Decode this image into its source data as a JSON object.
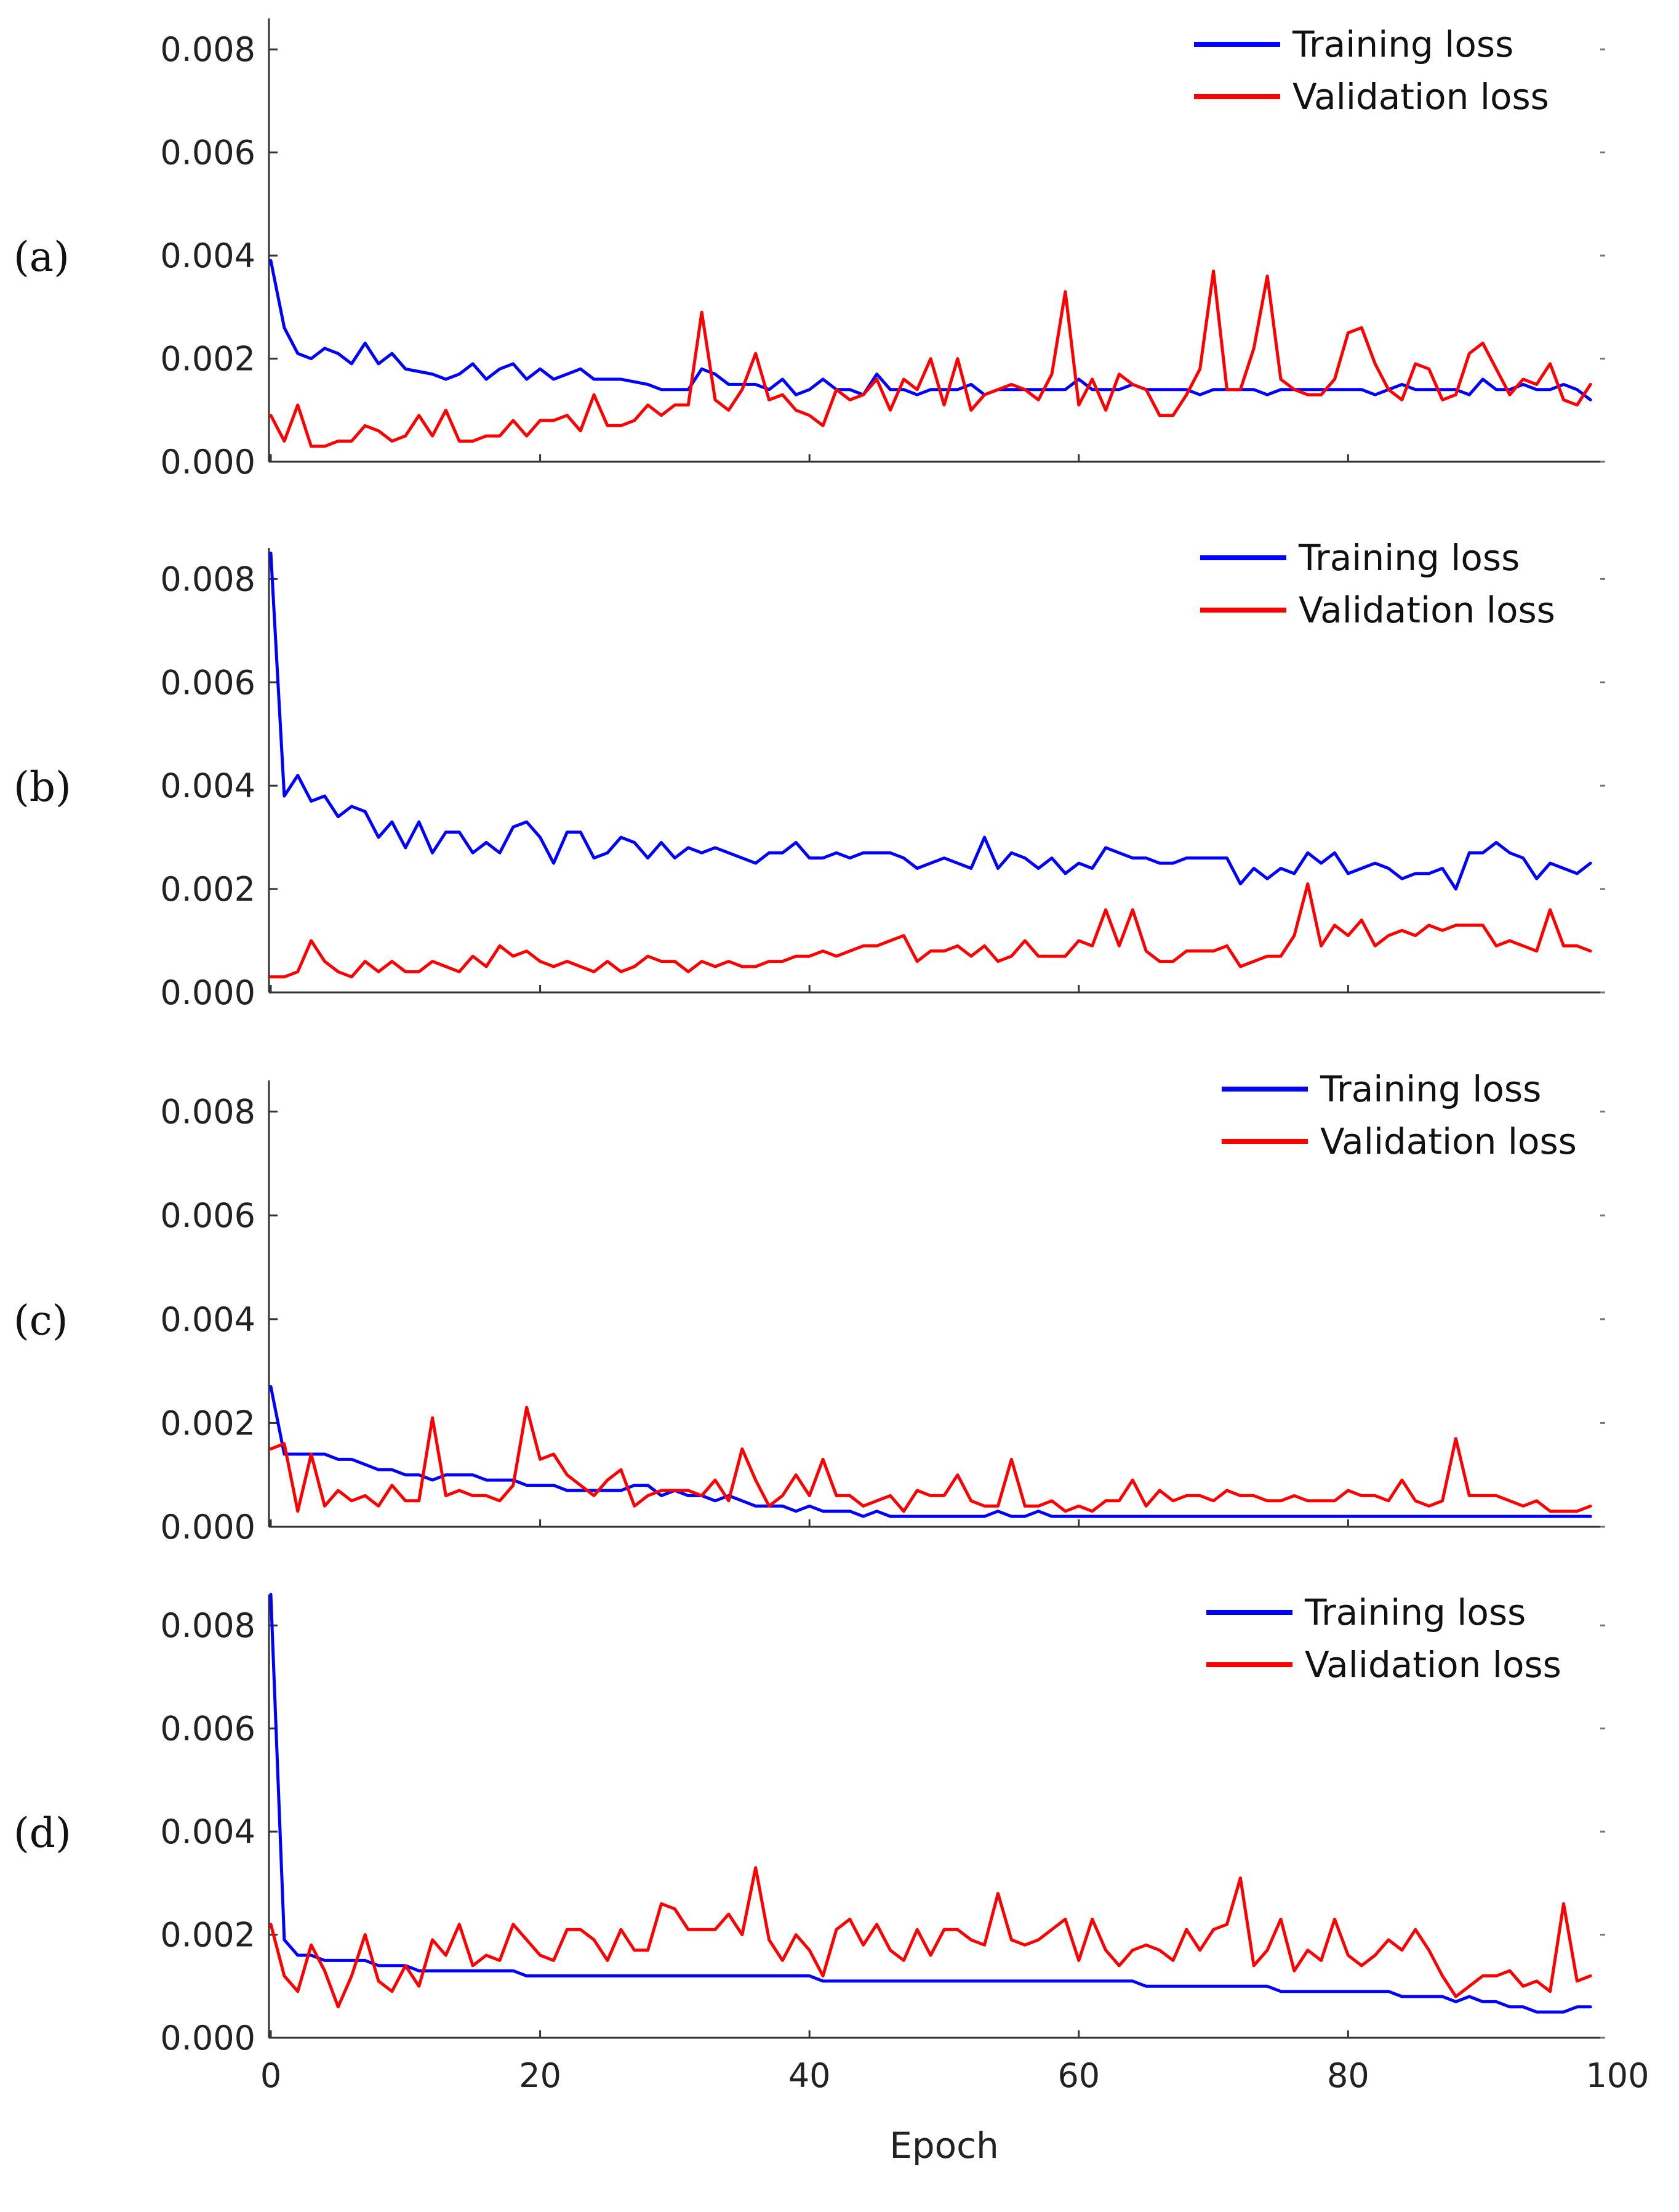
{
  "chart_data": [
    {
      "type": "line",
      "panel": "(a)",
      "xlabel": "",
      "ylabel": "",
      "xlim": [
        0,
        100
      ],
      "ylim": [
        0,
        0.0086
      ],
      "yticks": [
        "0.000",
        "0.002",
        "0.004",
        "0.006",
        "0.008"
      ],
      "legend": {
        "position": "top-right",
        "entries": [
          "Training loss",
          "Validation loss"
        ]
      },
      "series": [
        {
          "name": "Training loss",
          "color": "#0000ff",
          "values": [
            0.0039,
            0.0026,
            0.0021,
            0.002,
            0.0022,
            0.0021,
            0.0019,
            0.0023,
            0.0019,
            0.0021,
            0.0018,
            0.00175,
            0.0017,
            0.0016,
            0.0017,
            0.0019,
            0.0016,
            0.0018,
            0.0019,
            0.0016,
            0.0018,
            0.0016,
            0.0017,
            0.0018,
            0.0016,
            0.0016,
            0.0016,
            0.00155,
            0.0015,
            0.0014,
            0.0014,
            0.0014,
            0.0018,
            0.0017,
            0.0015,
            0.0015,
            0.0015,
            0.0014,
            0.0016,
            0.0013,
            0.0014,
            0.0016,
            0.0014,
            0.0014,
            0.0013,
            0.0017,
            0.0014,
            0.0014,
            0.0013,
            0.0014,
            0.0014,
            0.0014,
            0.0015,
            0.0013,
            0.0014,
            0.0014,
            0.0014,
            0.0014,
            0.0014,
            0.0014,
            0.0016,
            0.0014,
            0.0014,
            0.0014,
            0.0015,
            0.0014,
            0.0014,
            0.0014,
            0.0014,
            0.0013,
            0.0014,
            0.0014,
            0.0014,
            0.0014,
            0.0013,
            0.0014,
            0.0014,
            0.0014,
            0.0014,
            0.0014,
            0.0014,
            0.0014,
            0.0013,
            0.0014,
            0.0015,
            0.0014,
            0.0014,
            0.0014,
            0.0014,
            0.0013,
            0.0016,
            0.0014,
            0.0014,
            0.0015,
            0.0014,
            0.0014,
            0.0015,
            0.0014,
            0.0012
          ]
        },
        {
          "name": "Validation loss",
          "color": "#ff0000",
          "values": [
            0.0009,
            0.0004,
            0.0011,
            0.0003,
            0.0003,
            0.0004,
            0.0004,
            0.0007,
            0.0006,
            0.0004,
            0.0005,
            0.0009,
            0.0005,
            0.001,
            0.0004,
            0.0004,
            0.0005,
            0.0005,
            0.0008,
            0.0005,
            0.0008,
            0.0008,
            0.0009,
            0.0006,
            0.0013,
            0.0007,
            0.0007,
            0.0008,
            0.0011,
            0.0009,
            0.0011,
            0.0011,
            0.0029,
            0.0012,
            0.001,
            0.0014,
            0.0021,
            0.0012,
            0.0013,
            0.001,
            0.0009,
            0.0007,
            0.0014,
            0.0012,
            0.0013,
            0.0016,
            0.001,
            0.0016,
            0.0014,
            0.002,
            0.0011,
            0.002,
            0.001,
            0.0013,
            0.0014,
            0.0015,
            0.0014,
            0.0012,
            0.0017,
            0.0033,
            0.0011,
            0.0016,
            0.001,
            0.0017,
            0.0015,
            0.0014,
            0.0009,
            0.0009,
            0.0013,
            0.0018,
            0.0037,
            0.0014,
            0.0014,
            0.0022,
            0.0036,
            0.0016,
            0.0014,
            0.0013,
            0.0013,
            0.0016,
            0.0025,
            0.0026,
            0.0019,
            0.0014,
            0.0012,
            0.0019,
            0.0018,
            0.0012,
            0.0013,
            0.0021,
            0.0023,
            0.0018,
            0.0013,
            0.0016,
            0.0015,
            0.0019,
            0.0012,
            0.0011,
            0.0015
          ]
        }
      ]
    },
    {
      "type": "line",
      "panel": "(b)",
      "xlabel": "",
      "ylabel": "",
      "xlim": [
        0,
        100
      ],
      "ylim": [
        0,
        0.0086
      ],
      "yticks": [
        "0.000",
        "0.002",
        "0.004",
        "0.006",
        "0.008"
      ],
      "legend": {
        "position": "top-right",
        "entries": [
          "Training loss",
          "Validation loss"
        ]
      },
      "series": [
        {
          "name": "Training loss",
          "color": "#0000ff",
          "values": [
            0.0085,
            0.0038,
            0.0042,
            0.0037,
            0.0038,
            0.0034,
            0.0036,
            0.0035,
            0.003,
            0.0033,
            0.0028,
            0.0033,
            0.0027,
            0.0031,
            0.0031,
            0.0027,
            0.0029,
            0.0027,
            0.0032,
            0.0033,
            0.003,
            0.0025,
            0.0031,
            0.0031,
            0.0026,
            0.0027,
            0.003,
            0.0029,
            0.0026,
            0.0029,
            0.0026,
            0.0028,
            0.0027,
            0.0028,
            0.0027,
            0.0026,
            0.0025,
            0.0027,
            0.0027,
            0.0029,
            0.0026,
            0.0026,
            0.0027,
            0.0026,
            0.0027,
            0.0027,
            0.0027,
            0.0026,
            0.0024,
            0.0025,
            0.0026,
            0.0025,
            0.0024,
            0.003,
            0.0024,
            0.0027,
            0.0026,
            0.0024,
            0.0026,
            0.0023,
            0.0025,
            0.0024,
            0.0028,
            0.0027,
            0.0026,
            0.0026,
            0.0025,
            0.0025,
            0.0026,
            0.0026,
            0.0026,
            0.0026,
            0.0021,
            0.0024,
            0.0022,
            0.0024,
            0.0023,
            0.0027,
            0.0025,
            0.0027,
            0.0023,
            0.0024,
            0.0025,
            0.0024,
            0.0022,
            0.0023,
            0.0023,
            0.0024,
            0.002,
            0.0027,
            0.0027,
            0.0029,
            0.0027,
            0.0026,
            0.0022,
            0.0025,
            0.0024,
            0.0023,
            0.0025
          ]
        },
        {
          "name": "Validation loss",
          "color": "#ff0000",
          "values": [
            0.0003,
            0.0003,
            0.0004,
            0.001,
            0.0006,
            0.0004,
            0.0003,
            0.0006,
            0.0004,
            0.0006,
            0.0004,
            0.0004,
            0.0006,
            0.0005,
            0.0004,
            0.0007,
            0.0005,
            0.0009,
            0.0007,
            0.0008,
            0.0006,
            0.0005,
            0.0006,
            0.0005,
            0.0004,
            0.0006,
            0.0004,
            0.0005,
            0.0007,
            0.0006,
            0.0006,
            0.0004,
            0.0006,
            0.0005,
            0.0006,
            0.0005,
            0.0005,
            0.0006,
            0.0006,
            0.0007,
            0.0007,
            0.0008,
            0.0007,
            0.0008,
            0.0009,
            0.0009,
            0.001,
            0.0011,
            0.0006,
            0.0008,
            0.0008,
            0.0009,
            0.0007,
            0.0009,
            0.0006,
            0.0007,
            0.001,
            0.0007,
            0.0007,
            0.0007,
            0.001,
            0.0009,
            0.0016,
            0.0009,
            0.0016,
            0.0008,
            0.0006,
            0.0006,
            0.0008,
            0.0008,
            0.0008,
            0.0009,
            0.0005,
            0.0006,
            0.0007,
            0.0007,
            0.0011,
            0.0021,
            0.0009,
            0.0013,
            0.0011,
            0.0014,
            0.0009,
            0.0011,
            0.0012,
            0.0011,
            0.0013,
            0.0012,
            0.0013,
            0.0013,
            0.0013,
            0.0009,
            0.001,
            0.0009,
            0.0008,
            0.0016,
            0.0009,
            0.0009,
            0.0008
          ]
        }
      ]
    },
    {
      "type": "line",
      "panel": "(c)",
      "xlabel": "",
      "ylabel": "",
      "xlim": [
        0,
        100
      ],
      "ylim": [
        0,
        0.0086
      ],
      "yticks": [
        "0.000",
        "0.002",
        "0.004",
        "0.006",
        "0.008"
      ],
      "legend": {
        "position": "top-right",
        "entries": [
          "Training loss",
          "Validation loss"
        ]
      },
      "series": [
        {
          "name": "Training loss",
          "color": "#0000ff",
          "values": [
            0.0027,
            0.0014,
            0.0014,
            0.0014,
            0.0014,
            0.0013,
            0.0013,
            0.0012,
            0.0011,
            0.0011,
            0.001,
            0.001,
            0.0009,
            0.001,
            0.001,
            0.001,
            0.0009,
            0.0009,
            0.0009,
            0.0008,
            0.0008,
            0.0008,
            0.0007,
            0.0007,
            0.0007,
            0.0007,
            0.0007,
            0.0008,
            0.0008,
            0.0006,
            0.0007,
            0.0006,
            0.0006,
            0.0005,
            0.0006,
            0.0005,
            0.0004,
            0.0004,
            0.0004,
            0.0003,
            0.0004,
            0.0003,
            0.0003,
            0.0003,
            0.0002,
            0.0003,
            0.0002,
            0.0002,
            0.0002,
            0.0002,
            0.0002,
            0.0002,
            0.0002,
            0.0002,
            0.0003,
            0.0002,
            0.0002,
            0.0003,
            0.0002,
            0.0002,
            0.0002,
            0.0002,
            0.0002,
            0.0002,
            0.0002,
            0.0002,
            0.0002,
            0.0002,
            0.0002,
            0.0002,
            0.0002,
            0.0002,
            0.0002,
            0.0002,
            0.0002,
            0.0002,
            0.0002,
            0.0002,
            0.0002,
            0.0002,
            0.0002,
            0.0002,
            0.0002,
            0.0002,
            0.0002,
            0.0002,
            0.0002,
            0.0002,
            0.0002,
            0.0002,
            0.0002,
            0.0002,
            0.0002,
            0.0002,
            0.0002,
            0.0002,
            0.0002,
            0.0002,
            0.0002
          ]
        },
        {
          "name": "Validation loss",
          "color": "#ff0000",
          "values": [
            0.0015,
            0.0016,
            0.0003,
            0.0014,
            0.0004,
            0.0007,
            0.0005,
            0.0006,
            0.0004,
            0.0008,
            0.0005,
            0.0005,
            0.0021,
            0.0006,
            0.0007,
            0.0006,
            0.0006,
            0.0005,
            0.0008,
            0.0023,
            0.0013,
            0.0014,
            0.001,
            0.0008,
            0.0006,
            0.0009,
            0.0011,
            0.0004,
            0.0006,
            0.0007,
            0.0007,
            0.0007,
            0.0006,
            0.0009,
            0.0005,
            0.0015,
            0.0009,
            0.0004,
            0.0006,
            0.001,
            0.0006,
            0.0013,
            0.0006,
            0.0006,
            0.0004,
            0.0005,
            0.0006,
            0.0003,
            0.0007,
            0.0006,
            0.0006,
            0.001,
            0.0005,
            0.0004,
            0.0004,
            0.0013,
            0.0004,
            0.0004,
            0.0005,
            0.0003,
            0.0004,
            0.0003,
            0.0005,
            0.0005,
            0.0009,
            0.0004,
            0.0007,
            0.0005,
            0.0006,
            0.0006,
            0.0005,
            0.0007,
            0.0006,
            0.0006,
            0.0005,
            0.0005,
            0.0006,
            0.0005,
            0.0005,
            0.0005,
            0.0007,
            0.0006,
            0.0006,
            0.0005,
            0.0009,
            0.0005,
            0.0004,
            0.0005,
            0.0017,
            0.0006,
            0.0006,
            0.0006,
            0.0005,
            0.0004,
            0.0005,
            0.0003,
            0.0003,
            0.0003,
            0.0004
          ]
        }
      ]
    },
    {
      "type": "line",
      "panel": "(d)",
      "xlabel": "Epoch",
      "ylabel": "",
      "xlim": [
        0,
        100
      ],
      "ylim": [
        0,
        0.0086
      ],
      "xticks": [
        "0",
        "20",
        "40",
        "60",
        "80",
        "100"
      ],
      "yticks": [
        "0.000",
        "0.002",
        "0.004",
        "0.006",
        "0.008"
      ],
      "legend": {
        "position": "top-right",
        "entries": [
          "Training loss",
          "Validation loss"
        ]
      },
      "series": [
        {
          "name": "Training loss",
          "color": "#0000ff",
          "values": [
            0.0086,
            0.0019,
            0.0016,
            0.0016,
            0.0015,
            0.0015,
            0.0015,
            0.0015,
            0.0014,
            0.0014,
            0.0014,
            0.0013,
            0.0013,
            0.0013,
            0.0013,
            0.0013,
            0.0013,
            0.0013,
            0.0013,
            0.0012,
            0.0012,
            0.0012,
            0.0012,
            0.0012,
            0.0012,
            0.0012,
            0.0012,
            0.0012,
            0.0012,
            0.0012,
            0.0012,
            0.0012,
            0.0012,
            0.0012,
            0.0012,
            0.0012,
            0.0012,
            0.0012,
            0.0012,
            0.0012,
            0.0012,
            0.0011,
            0.0011,
            0.0011,
            0.0011,
            0.0011,
            0.0011,
            0.0011,
            0.0011,
            0.0011,
            0.0011,
            0.0011,
            0.0011,
            0.0011,
            0.0011,
            0.0011,
            0.0011,
            0.0011,
            0.0011,
            0.0011,
            0.0011,
            0.0011,
            0.0011,
            0.0011,
            0.0011,
            0.001,
            0.001,
            0.001,
            0.001,
            0.001,
            0.001,
            0.001,
            0.001,
            0.001,
            0.001,
            0.0009,
            0.0009,
            0.0009,
            0.0009,
            0.0009,
            0.0009,
            0.0009,
            0.0009,
            0.0009,
            0.0008,
            0.0008,
            0.0008,
            0.0008,
            0.0007,
            0.0008,
            0.0007,
            0.0007,
            0.0006,
            0.0006,
            0.0005,
            0.0005,
            0.0005,
            0.0006,
            0.0006
          ]
        },
        {
          "name": "Validation loss",
          "color": "#ff0000",
          "values": [
            0.0022,
            0.0012,
            0.0009,
            0.0018,
            0.0013,
            0.0006,
            0.0012,
            0.002,
            0.0011,
            0.0009,
            0.0014,
            0.001,
            0.0019,
            0.0016,
            0.0022,
            0.0014,
            0.0016,
            0.0015,
            0.0022,
            0.0019,
            0.0016,
            0.0015,
            0.0021,
            0.0021,
            0.0019,
            0.0015,
            0.0021,
            0.0017,
            0.0017,
            0.0026,
            0.0025,
            0.0021,
            0.0021,
            0.0021,
            0.0024,
            0.002,
            0.0033,
            0.0019,
            0.0015,
            0.002,
            0.0017,
            0.0012,
            0.0021,
            0.0023,
            0.0018,
            0.0022,
            0.0017,
            0.0015,
            0.0021,
            0.0016,
            0.0021,
            0.0021,
            0.0019,
            0.0018,
            0.0028,
            0.0019,
            0.0018,
            0.0019,
            0.0021,
            0.0023,
            0.0015,
            0.0023,
            0.0017,
            0.0014,
            0.0017,
            0.0018,
            0.0017,
            0.0015,
            0.0021,
            0.0017,
            0.0021,
            0.0022,
            0.0031,
            0.0014,
            0.0017,
            0.0023,
            0.0013,
            0.0017,
            0.0015,
            0.0023,
            0.0016,
            0.0014,
            0.0016,
            0.0019,
            0.0017,
            0.0021,
            0.0017,
            0.0012,
            0.0008,
            0.001,
            0.0012,
            0.0012,
            0.0013,
            0.001,
            0.0011,
            0.0009,
            0.0026,
            0.0011,
            0.0012
          ]
        }
      ]
    }
  ]
}
